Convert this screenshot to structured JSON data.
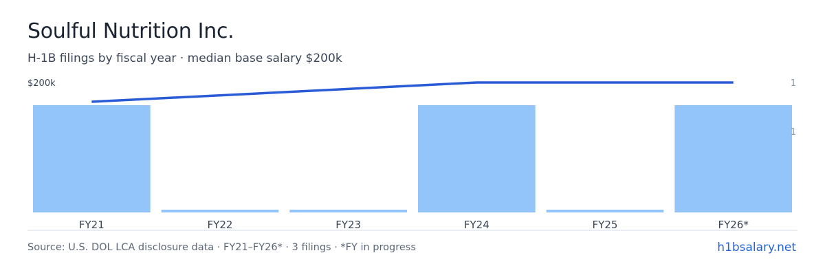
{
  "header": {
    "title": "Soulful Nutrition Inc.",
    "subtitle": "H-1B filings by fiscal year · median base salary $200k"
  },
  "footer": {
    "source": "Source: U.S. DOL LCA disclosure data · FY21–FY26* · 3 filings · *FY in progress",
    "brand": "h1bsalary.net"
  },
  "colors": {
    "bar": "#93c5fb",
    "line": "#2a5bd7",
    "axis_text": "#3a4556",
    "muted_text": "#8a94a3",
    "baseline": "#d5dbe3"
  },
  "chart_data": {
    "type": "bar",
    "categories": [
      "FY21",
      "FY22",
      "FY23",
      "FY24",
      "FY25",
      "FY26*"
    ],
    "series": [
      {
        "type": "bar",
        "axis": "right",
        "values": [
          1,
          0,
          0,
          1,
          0,
          1
        ]
      },
      {
        "type": "line",
        "axis": "left",
        "values": [
          180000,
          null,
          null,
          200000,
          null,
          200000
        ]
      }
    ],
    "left_axis": {
      "tick_labels": [
        "$200k"
      ]
    },
    "right_axis": {
      "tick_labels": [
        "1",
        "1"
      ]
    },
    "grid": false
  }
}
